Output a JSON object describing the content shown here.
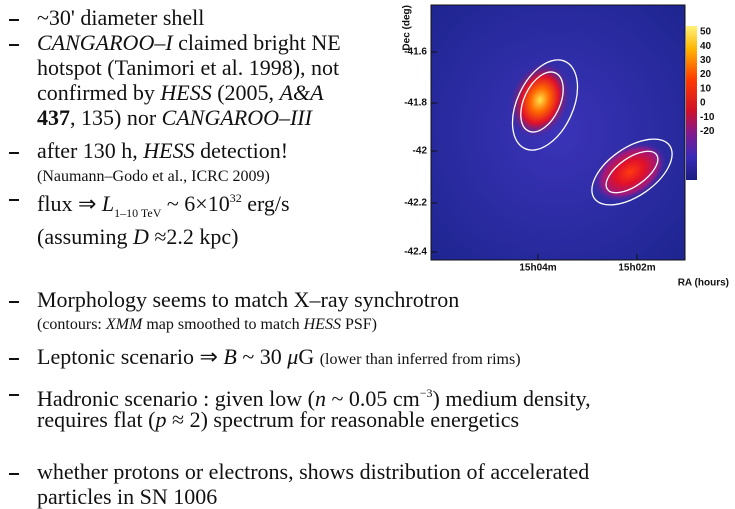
{
  "bullets": [
    {
      "lines": [
        [
          {
            "text": "~30' diameter shell",
            "style": "n"
          }
        ]
      ]
    },
    {
      "lines": [
        [
          {
            "text": "CANGAROO–I",
            "style": "i"
          },
          {
            "text": " claimed bright NE",
            "style": "n"
          }
        ],
        [
          {
            "text": "hotspot (Tanimori et al. 1998), not",
            "style": "n"
          }
        ],
        [
          {
            "text": "confirmed by ",
            "style": "n"
          },
          {
            "text": "HESS",
            "style": "i"
          },
          {
            "text": " (2005, ",
            "style": "n"
          },
          {
            "text": "A&A",
            "style": "i"
          }
        ],
        [
          {
            "text": "437",
            "style": "b"
          },
          {
            "text": ", 135) nor ",
            "style": "n"
          },
          {
            "text": "CANGAROO–III",
            "style": "i"
          }
        ]
      ]
    },
    {
      "lines": [
        [
          {
            "text": "after 130 h, ",
            "style": "n"
          },
          {
            "text": "HESS",
            "style": "i"
          },
          {
            "text": " detection!",
            "style": "n"
          }
        ],
        [
          {
            "text": "(Naumann–Godo et al., ICRC 2009)",
            "style": "s"
          }
        ]
      ]
    },
    {
      "lines": [
        [
          {
            "text": "flux ⇒ ",
            "style": "n"
          },
          {
            "text": "L",
            "style": "i"
          },
          {
            "text": "1–10 TeV",
            "style": "sub"
          },
          {
            "text": " ~ 6×10",
            "style": "n"
          },
          {
            "text": "32",
            "style": "sup"
          },
          {
            "text": " erg/s",
            "style": "n"
          }
        ],
        [
          {
            "text": "(assuming ",
            "style": "n"
          },
          {
            "text": "D",
            "style": "i"
          },
          {
            "text": " ≈2.2 kpc)",
            "style": "n"
          }
        ]
      ]
    },
    {
      "lines": [
        [
          {
            "text": "Morphology seems to match X–ray synchrotron",
            "style": "n"
          }
        ],
        [
          {
            "text": "(contours: ",
            "style": "s"
          },
          {
            "text": "XMM",
            "style": "i s"
          },
          {
            "text": " map smoothed to match ",
            "style": "s"
          },
          {
            "text": "HESS",
            "style": "i s"
          },
          {
            "text": " PSF)",
            "style": "s"
          }
        ]
      ]
    },
    {
      "lines": [
        [
          {
            "text": "Leptonic scenario ⇒ ",
            "style": "n"
          },
          {
            "text": "B",
            "style": "i"
          },
          {
            "text": " ~ 30 ",
            "style": "n"
          },
          {
            "text": "μ",
            "style": "i"
          },
          {
            "text": "G  ",
            "style": "n"
          },
          {
            "text": "(lower than inferred from rims)",
            "style": "s"
          }
        ]
      ]
    },
    {
      "lines": [
        [
          {
            "text": "Hadronic scenario : given low (",
            "style": "n"
          },
          {
            "text": "n",
            "style": "i"
          },
          {
            "text": " ~ 0.05 cm",
            "style": "n"
          },
          {
            "text": "−3",
            "style": "sup"
          },
          {
            "text": ") medium density,",
            "style": "n"
          }
        ],
        [
          {
            "text": "requires flat (",
            "style": "n"
          },
          {
            "text": "p",
            "style": "i"
          },
          {
            "text": " ≈ 2) spectrum for reasonable energetics",
            "style": "n"
          }
        ]
      ]
    },
    {
      "lines": [
        [
          {
            "text": "whether protons or electrons, shows distribution of accelerated",
            "style": "n"
          }
        ],
        [
          {
            "text": "particles in SN 1006",
            "style": "n"
          }
        ]
      ]
    }
  ],
  "map": {
    "y_label": "Dec (deg)",
    "y_ticks": [
      "-41.6",
      "-41.8",
      "-42",
      "-42.2",
      "-42.4"
    ],
    "x_ticks": [
      "15h04m",
      "15h02m"
    ],
    "x_label": "RA (hours)",
    "colorbar_ticks": [
      "50",
      "40",
      "30",
      "20",
      "10",
      "0",
      "-10",
      "-20"
    ]
  }
}
